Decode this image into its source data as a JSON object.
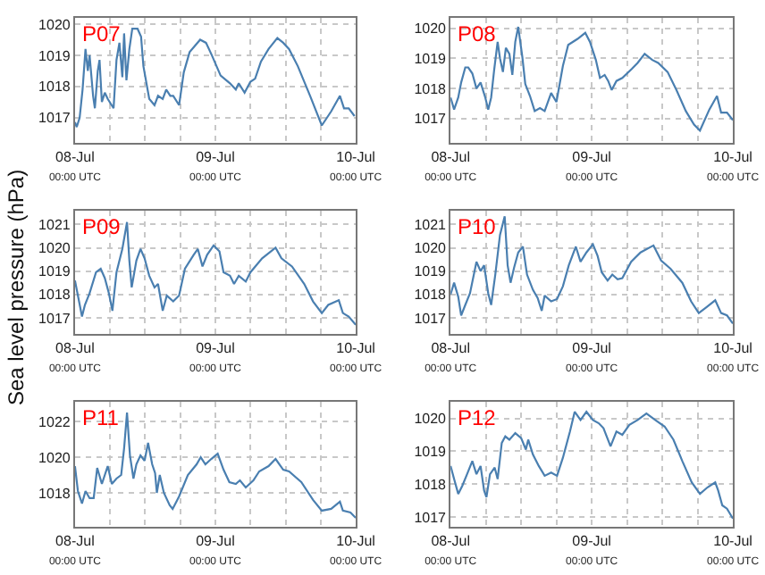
{
  "chart_data": [
    {
      "type": "line",
      "title": "P07",
      "color": "#4a7fb0",
      "grid": true,
      "xlim": [
        "--07-08T00:00",
        "--07-10T00:00"
      ],
      "xticks": [
        {
          "value": "--07-08T00:00",
          "label": "08-Jul\n00:00 UTC"
        },
        {
          "value": "--07-08T06:00",
          "label": null
        },
        {
          "value": "--07-08T12:00",
          "label": null
        },
        {
          "value": "--07-08T18:00",
          "label": null
        },
        {
          "value": "--07-09T00:00",
          "label": "09-Jul\n00:00 UTC"
        },
        {
          "value": "--07-09T06:00",
          "label": null
        },
        {
          "value": "--07-09T12:00",
          "label": null
        },
        {
          "value": "--07-09T18:00",
          "label": null
        },
        {
          "value": "--07-10T00:00",
          "label": "10-Jul\n00:00 UTC"
        }
      ],
      "ylim": [
        1016.2,
        1020.2
      ],
      "yticks": [
        1017,
        1018,
        1019,
        1020
      ],
      "x": [
        "--07-08T00:00",
        "--07-08T00:18",
        "--07-08T00:48",
        "--07-08T01:18",
        "--07-08T01:48",
        "--07-08T02:12",
        "--07-08T02:30",
        "--07-08T03:06",
        "--07-08T03:24",
        "--07-08T03:54",
        "--07-08T04:12",
        "--07-08T04:36",
        "--07-08T05:06",
        "--07-08T05:36",
        "--07-08T06:36",
        "--07-08T07:06",
        "--07-08T07:36",
        "--07-08T08:06",
        "--07-08T08:24",
        "--07-08T08:48",
        "--07-08T09:18",
        "--07-08T09:48",
        "--07-08T10:42",
        "--07-08T11:18",
        "--07-08T11:42",
        "--07-08T12:42",
        "--07-08T13:36",
        "--07-08T14:12",
        "--07-08T15:00",
        "--07-08T15:36",
        "--07-08T16:18",
        "--07-08T16:48",
        "--07-08T17:48",
        "--07-08T18:36",
        "--07-08T19:36",
        "--07-08T21:24",
        "--07-08T22:24",
        "--07-08T23:24",
        "--07-09T00:54",
        "--07-09T02:30",
        "--07-09T03:30",
        "--07-09T04:00",
        "--07-09T05:00",
        "--07-09T06:00",
        "--07-09T06:48",
        "--07-09T07:48",
        "--07-09T09:06",
        "--07-09T10:36",
        "--07-09T11:36",
        "--07-09T12:36",
        "--07-09T14:06",
        "--07-09T16:12",
        "--07-09T18:12",
        "--07-09T19:48",
        "--07-09T21:18",
        "--07-09T22:00",
        "--07-09T22:48",
        "--07-09T23:48"
      ],
      "values": [
        1016.85,
        1016.7,
        1017,
        1017.9,
        1019.2,
        1018.5,
        1019,
        1017.7,
        1017.3,
        1018.5,
        1018.85,
        1017.5,
        1017.8,
        1017.6,
        1017.3,
        1018.85,
        1019.4,
        1018.3,
        1019.7,
        1018.2,
        1019.2,
        1019.85,
        1019.85,
        1019.6,
        1018.65,
        1017.6,
        1017.4,
        1017.7,
        1017.6,
        1017.9,
        1017.7,
        1017.7,
        1017.4,
        1018.45,
        1019.1,
        1019.5,
        1019.4,
        1019,
        1018.35,
        1018.1,
        1017.9,
        1018.1,
        1017.8,
        1018.15,
        1018.25,
        1018.8,
        1019.2,
        1019.55,
        1019.4,
        1019.2,
        1018.65,
        1017.7,
        1016.75,
        1017.2,
        1017.7,
        1017.3,
        1017.3,
        1017.05
      ]
    },
    {
      "type": "line",
      "title": "P08",
      "color": "#4a7fb0",
      "grid": true,
      "xlim": [
        "--07-08T00:00",
        "--07-10T00:00"
      ],
      "xticks": [
        {
          "value": "--07-08T00:00",
          "label": "08-Jul\n00:00 UTC"
        },
        {
          "value": "--07-08T06:00",
          "label": null
        },
        {
          "value": "--07-08T12:00",
          "label": null
        },
        {
          "value": "--07-08T18:00",
          "label": null
        },
        {
          "value": "--07-09T00:00",
          "label": "09-Jul\n00:00 UTC"
        },
        {
          "value": "--07-09T06:00",
          "label": null
        },
        {
          "value": "--07-09T12:00",
          "label": null
        },
        {
          "value": "--07-09T18:00",
          "label": null
        },
        {
          "value": "--07-10T00:00",
          "label": "10-Jul\n00:00 UTC"
        }
      ],
      "ylim": [
        1016.2,
        1020.35
      ],
      "yticks": [
        1017,
        1018,
        1019,
        1020
      ],
      "x": [
        "--07-08T00:00",
        "--07-08T00:36",
        "--07-08T01:18",
        "--07-08T01:48",
        "--07-08T02:30",
        "--07-08T03:00",
        "--07-08T03:42",
        "--07-08T04:24",
        "--07-08T05:06",
        "--07-08T05:54",
        "--07-08T06:24",
        "--07-08T06:54",
        "--07-08T07:24",
        "--07-08T08:00",
        "--07-08T08:24",
        "--07-08T08:54",
        "--07-08T09:24",
        "--07-08T10:00",
        "--07-08T10:30",
        "--07-08T11:00",
        "--07-08T11:30",
        "--07-08T12:12",
        "--07-08T12:42",
        "--07-08T13:30",
        "--07-08T14:18",
        "--07-08T15:12",
        "--07-08T16:00",
        "--07-08T17:06",
        "--07-08T18:00",
        "--07-08T19:06",
        "--07-08T20:00",
        "--07-08T21:36",
        "--07-08T22:54",
        "--07-08T23:42",
        "--07-09T00:42",
        "--07-09T01:24",
        "--07-09T02:12",
        "--07-09T02:48",
        "--07-09T03:24",
        "--07-09T04:12",
        "--07-09T05:12",
        "--07-09T06:48",
        "--07-09T07:48",
        "--07-09T09:00",
        "--07-09T10:18",
        "--07-09T11:18",
        "--07-09T12:54",
        "--07-09T14:24",
        "--07-09T16:00",
        "--07-09T17:24",
        "--07-09T18:24",
        "--07-09T20:00",
        "--07-09T21:18",
        "--07-09T22:00",
        "--07-09T23:00",
        "--07-10T00:00"
      ],
      "values": [
        1017.7,
        1017.3,
        1017.7,
        1018.2,
        1018.7,
        1018.7,
        1018.5,
        1018,
        1018.2,
        1017.7,
        1017.3,
        1017.7,
        1018.6,
        1019.55,
        1019,
        1018.55,
        1019.35,
        1019.15,
        1018.45,
        1019.55,
        1020.05,
        1019.05,
        1018.15,
        1017.75,
        1017.25,
        1017.35,
        1017.25,
        1017.85,
        1017.55,
        1018.75,
        1019.45,
        1019.65,
        1019.85,
        1019.55,
        1018.95,
        1018.35,
        1018.45,
        1018.25,
        1017.95,
        1018.25,
        1018.35,
        1018.65,
        1018.85,
        1019.15,
        1018.95,
        1018.85,
        1018.55,
        1017.95,
        1017.25,
        1016.8,
        1016.6,
        1017.3,
        1017.75,
        1017.2,
        1017.2,
        1016.95
      ]
    },
    {
      "type": "line",
      "title": "P09",
      "ylabel": "Sea level pressure (hPa)",
      "color": "#4a7fb0",
      "grid": true,
      "xlim": [
        "--07-08T00:00",
        "--07-10T00:00"
      ],
      "xticks": [
        {
          "value": "--07-08T00:00",
          "label": "08-Jul\n00:00 UTC"
        },
        {
          "value": "--07-08T06:00",
          "label": null
        },
        {
          "value": "--07-08T12:00",
          "label": null
        },
        {
          "value": "--07-08T18:00",
          "label": null
        },
        {
          "value": "--07-09T00:00",
          "label": "09-Jul\n00:00 UTC"
        },
        {
          "value": "--07-09T06:00",
          "label": null
        },
        {
          "value": "--07-09T12:00",
          "label": null
        },
        {
          "value": "--07-09T18:00",
          "label": null
        },
        {
          "value": "--07-10T00:00",
          "label": "10-Jul\n00:00 UTC"
        }
      ],
      "ylim": [
        1016.3,
        1021.6
      ],
      "yticks": [
        1017,
        1018,
        1019,
        1020,
        1021
      ],
      "x": [
        "--07-08T00:00",
        "--07-08T00:30",
        "--07-08T01:12",
        "--07-08T01:42",
        "--07-08T02:30",
        "--07-08T03:36",
        "--07-08T04:24",
        "--07-08T05:06",
        "--07-08T05:48",
        "--07-08T06:24",
        "--07-08T07:06",
        "--07-08T08:06",
        "--07-08T08:54",
        "--07-08T09:18",
        "--07-08T09:42",
        "--07-08T10:30",
        "--07-08T11:12",
        "--07-08T11:54",
        "--07-08T12:42",
        "--07-08T13:36",
        "--07-08T14:12",
        "--07-08T15:00",
        "--07-08T15:42",
        "--07-08T16:48",
        "--07-08T17:48",
        "--07-08T18:48",
        "--07-08T20:18",
        "--07-08T21:00",
        "--07-08T21:48",
        "--07-08T22:36",
        "--07-08T23:42",
        "--07-09T00:42",
        "--07-09T01:24",
        "--07-09T02:30",
        "--07-09T03:12",
        "--07-09T04:00",
        "--07-09T05:12",
        "--07-09T06:00",
        "--07-09T08:00",
        "--07-09T10:18",
        "--07-09T11:18",
        "--07-09T13:06",
        "--07-09T15:12",
        "--07-09T16:42",
        "--07-09T18:12",
        "--07-09T19:18",
        "--07-09T21:06",
        "--07-09T21:48",
        "--07-09T22:48",
        "--07-10T00:00"
      ],
      "values": [
        1018.6,
        1017.95,
        1017.05,
        1017.55,
        1018.05,
        1018.95,
        1019.1,
        1018.7,
        1018.05,
        1017.3,
        1018.95,
        1019.95,
        1021.1,
        1019.45,
        1018.3,
        1019.45,
        1019.95,
        1019.55,
        1018.8,
        1018.3,
        1018.45,
        1017.3,
        1017.95,
        1017.7,
        1017.95,
        1019.1,
        1019.7,
        1019.95,
        1019.2,
        1019.7,
        1020.1,
        1019.85,
        1018.95,
        1018.8,
        1018.45,
        1018.8,
        1018.55,
        1018.95,
        1019.55,
        1020,
        1019.55,
        1019.2,
        1018.45,
        1017.7,
        1017.2,
        1017.55,
        1017.75,
        1017.2,
        1017.05,
        1016.7
      ]
    },
    {
      "type": "line",
      "title": "P10",
      "color": "#4a7fb0",
      "grid": true,
      "xlim": [
        "--07-08T00:00",
        "--07-10T00:00"
      ],
      "xticks": [
        {
          "value": "--07-08T00:00",
          "label": "08-Jul\n00:00 UTC"
        },
        {
          "value": "--07-08T06:00",
          "label": null
        },
        {
          "value": "--07-08T12:00",
          "label": null
        },
        {
          "value": "--07-08T18:00",
          "label": null
        },
        {
          "value": "--07-09T00:00",
          "label": "09-Jul\n00:00 UTC"
        },
        {
          "value": "--07-09T06:00",
          "label": null
        },
        {
          "value": "--07-09T12:00",
          "label": null
        },
        {
          "value": "--07-09T18:00",
          "label": null
        },
        {
          "value": "--07-10T00:00",
          "label": "10-Jul\n00:00 UTC"
        }
      ],
      "ylim": [
        1016.3,
        1021.6
      ],
      "yticks": [
        1017,
        1018,
        1019,
        1020,
        1021
      ],
      "x": [
        "--07-08T00:00",
        "--07-08T00:36",
        "--07-08T01:18",
        "--07-08T01:48",
        "--07-08T02:30",
        "--07-08T03:18",
        "--07-08T04:24",
        "--07-08T05:06",
        "--07-08T05:42",
        "--07-08T06:24",
        "--07-08T06:54",
        "--07-08T07:36",
        "--07-08T08:24",
        "--07-08T09:12",
        "--07-08T09:42",
        "--07-08T10:12",
        "--07-08T10:48",
        "--07-08T11:30",
        "--07-08T12:18",
        "--07-08T13:00",
        "--07-08T14:00",
        "--07-08T14:48",
        "--07-08T15:30",
        "--07-08T16:00",
        "--07-08T17:06",
        "--07-08T18:06",
        "--07-08T19:06",
        "--07-08T20:06",
        "--07-08T21:18",
        "--07-08T22:06",
        "--07-08T23:06",
        "--07-09T00:12",
        "--07-09T01:00",
        "--07-09T01:42",
        "--07-09T02:42",
        "--07-09T03:30",
        "--07-09T04:24",
        "--07-09T05:12",
        "--07-09T06:42",
        "--07-09T08:18",
        "--07-09T10:30",
        "--07-09T11:48",
        "--07-09T13:24",
        "--07-09T15:24",
        "--07-09T16:54",
        "--07-09T18:12",
        "--07-09T19:30",
        "--07-09T21:00",
        "--07-09T22:00",
        "--07-09T23:00",
        "--07-10T00:00"
      ],
      "values": [
        1018,
        1018.5,
        1017.9,
        1017.1,
        1017.55,
        1018.05,
        1019.4,
        1019,
        1019.25,
        1018.05,
        1017.55,
        1018.85,
        1020.55,
        1021.35,
        1019.25,
        1018.5,
        1019.15,
        1019.8,
        1020.05,
        1018.85,
        1018.2,
        1017.85,
        1017.3,
        1017.95,
        1017.7,
        1017.8,
        1018.35,
        1019.25,
        1020.05,
        1019.4,
        1019.8,
        1020.15,
        1019.65,
        1018.95,
        1018.6,
        1018.85,
        1018.65,
        1018.7,
        1019.4,
        1019.8,
        1020.1,
        1019.45,
        1019.1,
        1018.5,
        1017.7,
        1017.2,
        1017.45,
        1017.75,
        1017.2,
        1017.1,
        1016.75
      ]
    },
    {
      "type": "line",
      "title": "P11",
      "color": "#4a7fb0",
      "grid": true,
      "xlim": [
        "--07-08T00:00",
        "--07-10T00:00"
      ],
      "xticks": [
        {
          "value": "--07-08T00:00",
          "label": "08-Jul\n00:00 UTC"
        },
        {
          "value": "--07-08T06:00",
          "label": null
        },
        {
          "value": "--07-08T12:00",
          "label": null
        },
        {
          "value": "--07-08T18:00",
          "label": null
        },
        {
          "value": "--07-09T00:00",
          "label": "09-Jul\n00:00 UTC"
        },
        {
          "value": "--07-09T06:00",
          "label": null
        },
        {
          "value": "--07-09T12:00",
          "label": null
        },
        {
          "value": "--07-09T18:00",
          "label": null
        },
        {
          "value": "--07-10T00:00",
          "label": "10-Jul\n00:00 UTC"
        }
      ],
      "ylim": [
        1016.1,
        1023.1
      ],
      "yticks": [
        1018,
        1020,
        1022
      ],
      "x": [
        "--07-08T00:00",
        "--07-08T00:30",
        "--07-08T01:12",
        "--07-08T01:48",
        "--07-08T02:30",
        "--07-08T03:12",
        "--07-08T03:48",
        "--07-08T04:36",
        "--07-08T05:36",
        "--07-08T06:18",
        "--07-08T07:06",
        "--07-08T07:54",
        "--07-08T08:24",
        "--07-08T08:54",
        "--07-08T09:24",
        "--07-08T10:00",
        "--07-08T10:30",
        "--07-08T11:12",
        "--07-08T11:54",
        "--07-08T12:30",
        "--07-08T13:12",
        "--07-08T13:42",
        "--07-08T14:00",
        "--07-08T14:30",
        "--07-08T15:12",
        "--07-08T16:12",
        "--07-08T16:42",
        "--07-08T17:48",
        "--07-08T19:18",
        "--07-08T20:48",
        "--07-08T21:30",
        "--07-08T22:18",
        "--07-08T23:18",
        "--07-09T00:24",
        "--07-09T01:24",
        "--07-09T02:24",
        "--07-09T03:30",
        "--07-09T04:12",
        "--07-09T05:12",
        "--07-09T06:30",
        "--07-09T07:30",
        "--07-09T09:06",
        "--07-09T10:18",
        "--07-09T11:36",
        "--07-09T12:36",
        "--07-09T14:42",
        "--07-09T16:42",
        "--07-09T18:12",
        "--07-09T19:48",
        "--07-09T21:18",
        "--07-09T21:48",
        "--07-09T23:06",
        "--07-10T00:00"
      ],
      "values": [
        1019.5,
        1018.1,
        1017.4,
        1018.1,
        1017.7,
        1017.7,
        1019.4,
        1018.5,
        1019.5,
        1018.5,
        1018.8,
        1019,
        1020.5,
        1022.5,
        1020.1,
        1018.8,
        1019.6,
        1020.1,
        1019.8,
        1020.8,
        1019.6,
        1019.1,
        1018,
        1019,
        1018,
        1017.3,
        1017.1,
        1017.8,
        1019,
        1019.6,
        1020,
        1019.6,
        1019.9,
        1020.2,
        1019.3,
        1018.6,
        1018.5,
        1018.7,
        1018.3,
        1018.7,
        1019.2,
        1019.5,
        1019.9,
        1019.3,
        1019.2,
        1018.6,
        1017.6,
        1017,
        1017.1,
        1017.5,
        1017,
        1016.9,
        1016.6
      ]
    },
    {
      "type": "line",
      "title": "P12",
      "color": "#4a7fb0",
      "grid": true,
      "xlim": [
        "--07-08T00:00",
        "--07-10T00:00"
      ],
      "xticks": [
        {
          "value": "--07-08T00:00",
          "label": "08-Jul\n00:00 UTC"
        },
        {
          "value": "--07-08T06:00",
          "label": null
        },
        {
          "value": "--07-08T12:00",
          "label": null
        },
        {
          "value": "--07-08T18:00",
          "label": null
        },
        {
          "value": "--07-09T00:00",
          "label": "09-Jul\n00:00 UTC"
        },
        {
          "value": "--07-09T06:00",
          "label": null
        },
        {
          "value": "--07-09T12:00",
          "label": null
        },
        {
          "value": "--07-09T18:00",
          "label": null
        },
        {
          "value": "--07-10T00:00",
          "label": "10-Jul\n00:00 UTC"
        }
      ],
      "ylim": [
        1016.7,
        1020.5
      ],
      "yticks": [
        1017,
        1018,
        1019,
        1020
      ],
      "x": [
        "--07-08T00:00",
        "--07-08T00:36",
        "--07-08T01:18",
        "--07-08T02:00",
        "--07-08T02:48",
        "--07-08T03:42",
        "--07-08T04:24",
        "--07-08T05:06",
        "--07-08T05:42",
        "--07-08T06:06",
        "--07-08T06:42",
        "--07-08T07:30",
        "--07-08T08:00",
        "--07-08T08:42",
        "--07-08T09:18",
        "--07-08T10:00",
        "--07-08T11:00",
        "--07-08T12:00",
        "--07-08T12:48",
        "--07-08T13:12",
        "--07-08T14:00",
        "--07-08T15:00",
        "--07-08T16:00",
        "--07-08T17:06",
        "--07-08T18:06",
        "--07-08T19:06",
        "--07-08T20:18",
        "--07-08T21:06",
        "--07-08T22:06",
        "--07-08T23:06",
        "--07-09T00:12",
        "--07-09T01:12",
        "--07-09T02:00",
        "--07-09T03:12",
        "--07-09T04:12",
        "--07-09T05:12",
        "--07-09T06:24",
        "--07-09T07:48",
        "--07-09T09:18",
        "--07-09T10:48",
        "--07-09T12:24",
        "--07-09T13:54",
        "--07-09T15:24",
        "--07-09T17:00",
        "--07-09T18:24",
        "--07-09T19:42",
        "--07-09T21:00",
        "--07-09T21:30",
        "--07-09T22:12",
        "--07-09T23:00",
        "--07-10T00:00"
      ],
      "values": [
        1018.55,
        1018.15,
        1017.7,
        1017.95,
        1018.3,
        1018.7,
        1018.3,
        1018.55,
        1017.8,
        1017.6,
        1018.3,
        1018.5,
        1018.15,
        1019.25,
        1019.45,
        1019.35,
        1019.55,
        1019.4,
        1019.05,
        1019.35,
        1018.9,
        1018.55,
        1018.25,
        1018.35,
        1018.25,
        1018.8,
        1019.6,
        1020.2,
        1019.95,
        1020.2,
        1019.95,
        1019.85,
        1019.7,
        1019.15,
        1019.6,
        1019.5,
        1019.8,
        1019.95,
        1020.15,
        1019.95,
        1019.75,
        1019.35,
        1018.7,
        1018.05,
        1017.7,
        1017.9,
        1018.05,
        1017.8,
        1017.35,
        1017.25,
        1016.95
      ]
    }
  ]
}
